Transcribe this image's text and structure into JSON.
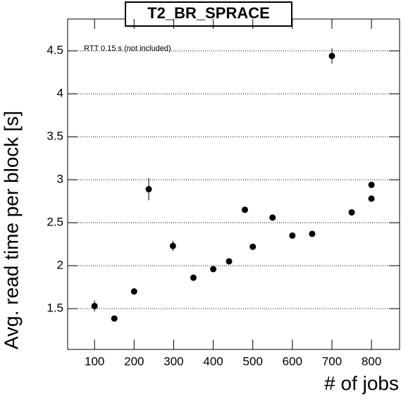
{
  "chart_data": {
    "type": "scatter",
    "title": "T2_BR_SPRACE",
    "x_label": "# of jobs",
    "y_label": "Avg. read time per block [s]",
    "annotation": "RTT 0.15 s (not included)",
    "x": [
      100,
      150,
      200,
      237,
      298,
      350,
      400,
      440,
      480,
      500,
      550,
      600,
      650,
      700,
      750,
      800,
      800
    ],
    "values": [
      1.53,
      1.385,
      1.7,
      2.89,
      2.23,
      1.86,
      1.96,
      2.05,
      2.65,
      2.22,
      2.56,
      2.35,
      2.37,
      4.44,
      2.62,
      2.94,
      2.78
    ],
    "errors": [
      0.065,
      0.03,
      0.03,
      0.13,
      0.06,
      0.02,
      0.02,
      0.02,
      0.03,
      0.02,
      0.02,
      0.02,
      0.02,
      0.09,
      0.02,
      0.02,
      0.02
    ],
    "color": "#000000",
    "xlim": [
      32,
      871
    ],
    "ylim": [
      1.025,
      4.87
    ],
    "xticks": [
      100,
      200,
      300,
      400,
      500,
      600,
      700,
      800
    ],
    "yticks": [
      1.5,
      2,
      2.5,
      3,
      3.5,
      4,
      4.5
    ],
    "grid": "y"
  }
}
